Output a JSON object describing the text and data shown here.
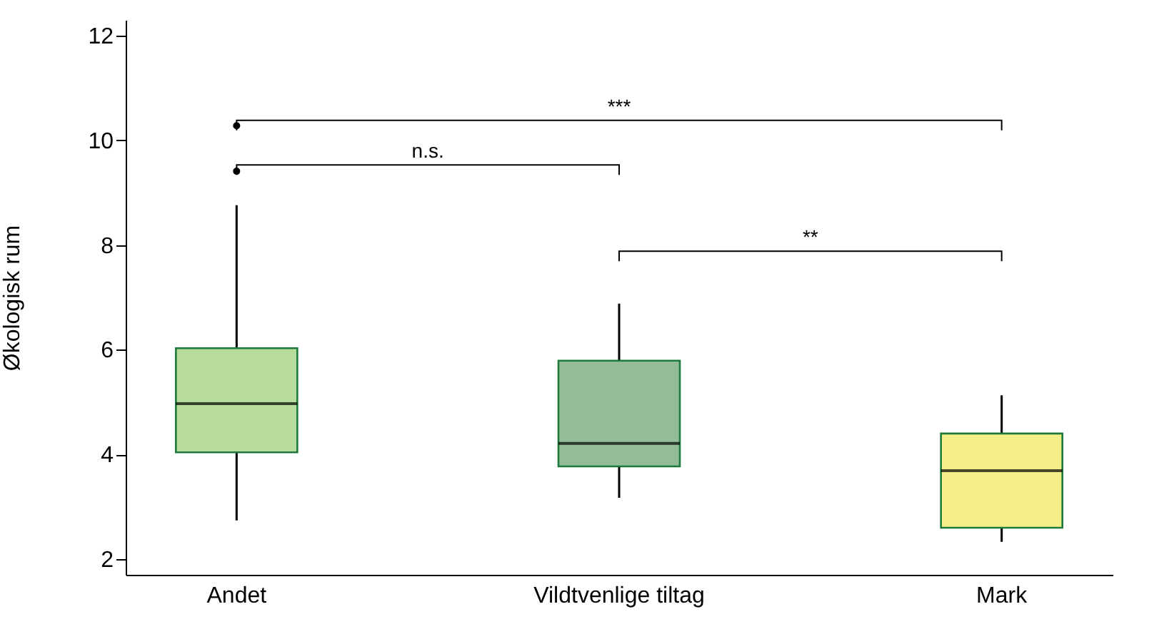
{
  "chart_data": {
    "type": "box",
    "ylabel": "Økologisk rum",
    "categories": [
      "Andet",
      "Vildtvenlige tiltag",
      "Mark"
    ],
    "boxes": [
      {
        "low": 2.74,
        "q1": 4.04,
        "median": 4.97,
        "q3": 6.03,
        "high": 8.76,
        "outliers": [
          9.41,
          10.28
        ]
      },
      {
        "low": 3.17,
        "q1": 3.77,
        "median": 4.21,
        "q3": 5.79,
        "high": 6.88
      },
      {
        "low": 2.33,
        "q1": 2.6,
        "median": 3.69,
        "q3": 4.4,
        "high": 5.13
      }
    ],
    "colors": [
      "#b8dc9c",
      "#94bc98",
      "#f5ef8a"
    ],
    "ylim": [
      1.7,
      12.3
    ],
    "yticks": [
      2,
      4,
      6,
      8,
      10,
      12
    ],
    "grid": false,
    "legend": false,
    "annotations": [
      "n.s.",
      "***",
      "**"
    ]
  }
}
